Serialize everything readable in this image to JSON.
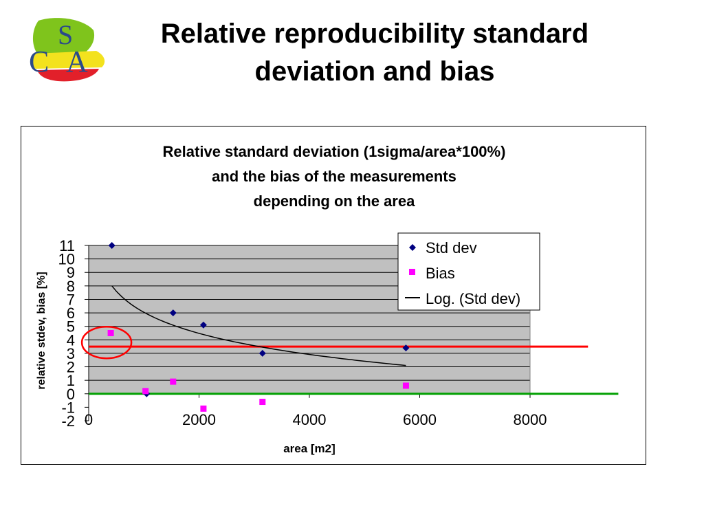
{
  "slide": {
    "title_line1": "Relative reproducibility standard",
    "title_line2": "deviation and bias",
    "logo_letters": [
      "S",
      "C",
      "A"
    ]
  },
  "colors": {
    "plot_bg": "#c0c0c0",
    "std_dev_marker": "#000080",
    "bias_marker": "#ff00ff",
    "log_trend": "#000000",
    "red_line": "#ff0000",
    "green_line": "#00a000",
    "highlight_circle": "#ff0000"
  },
  "chart_data": {
    "type": "scatter",
    "title_lines": [
      "Relative standard deviation (1sigma/area*100%)",
      "and the bias of the measurements",
      "depending on the area"
    ],
    "xlabel": "area [m2]",
    "ylabel": "relative stdev, bias [%]",
    "xlim": [
      0,
      8000
    ],
    "ylim": [
      -2,
      11
    ],
    "xticks": [
      0,
      2000,
      4000,
      6000,
      8000
    ],
    "yticks": [
      -2,
      -1,
      0,
      1,
      2,
      3,
      4,
      5,
      6,
      7,
      8,
      9,
      10,
      11
    ],
    "grid": "horizontal",
    "legend_position": "top-right",
    "series": [
      {
        "name": "Std dev",
        "marker": "diamond",
        "x": [
          420,
          1050,
          1530,
          2080,
          3150,
          5750
        ],
        "y": [
          11.0,
          0.0,
          6.0,
          5.1,
          3.0,
          3.4
        ]
      },
      {
        "name": "Bias",
        "marker": "square",
        "x": [
          400,
          1030,
          1530,
          2080,
          3150,
          5750
        ],
        "y": [
          4.5,
          0.2,
          0.9,
          -1.1,
          -0.6,
          0.6
        ]
      },
      {
        "name": "Log. (Std dev)",
        "kind": "log-trend",
        "x_range": [
          420,
          5750
        ],
        "y_start": 8.0,
        "y_end": 2.1
      }
    ],
    "reference_lines": [
      {
        "name": "red-line",
        "y": 3.5,
        "x_range": [
          0,
          9050
        ]
      },
      {
        "name": "green-line",
        "y": 0,
        "x_range": [
          0,
          9600
        ]
      }
    ],
    "highlight": {
      "x": 400,
      "y": 3.7
    }
  }
}
